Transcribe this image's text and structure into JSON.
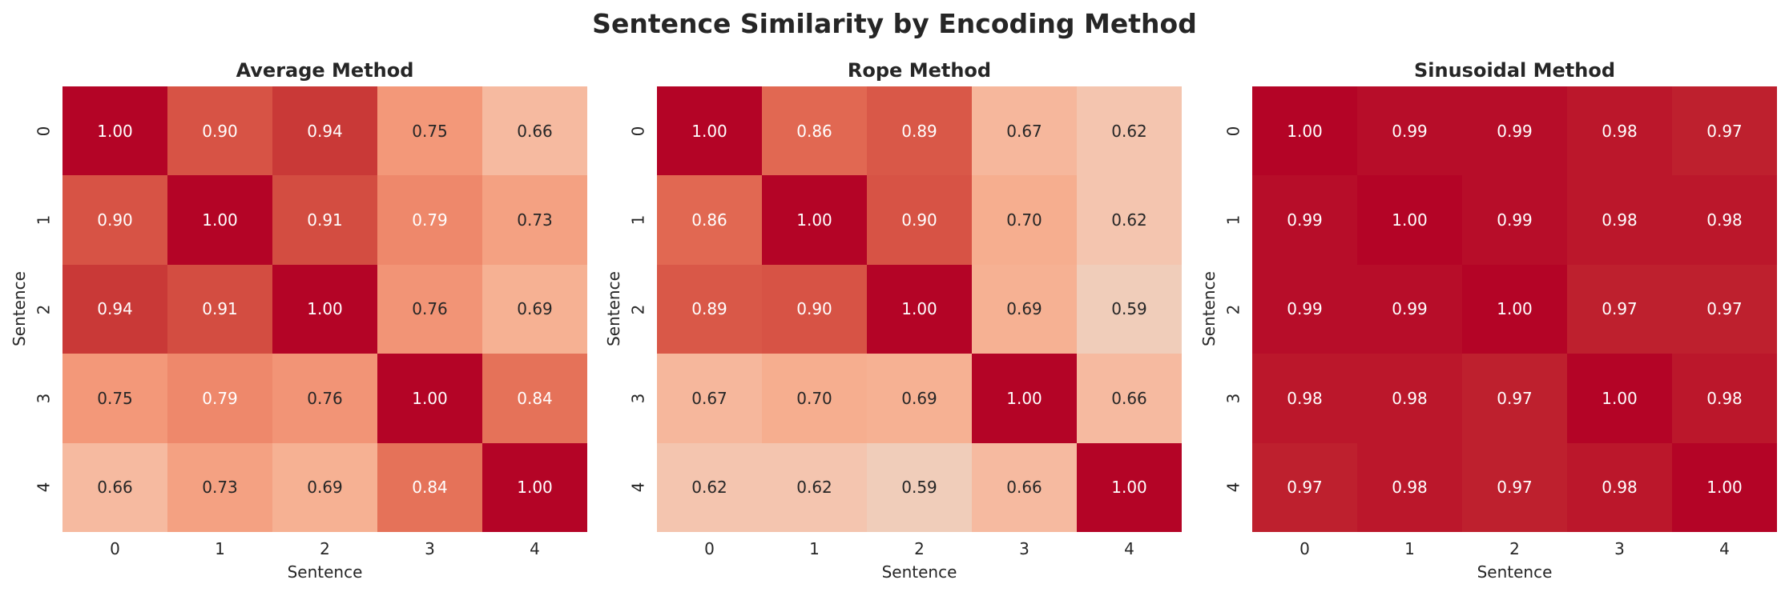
{
  "title": "Sentence Similarity by Encoding Method",
  "panels": [
    {
      "title": "Average Method",
      "xlabel": "Sentence",
      "ylabel": "Sentence",
      "xticks": [
        "0",
        "1",
        "2",
        "3",
        "4"
      ],
      "yticks": [
        "0",
        "1",
        "2",
        "3",
        "4"
      ]
    },
    {
      "title": "Rope Method",
      "xlabel": "Sentence",
      "ylabel": "Sentence",
      "xticks": [
        "0",
        "1",
        "2",
        "3",
        "4"
      ],
      "yticks": [
        "0",
        "1",
        "2",
        "3",
        "4"
      ]
    },
    {
      "title": "Sinusoidal Method",
      "xlabel": "Sentence",
      "ylabel": "Sentence",
      "xticks": [
        "0",
        "1",
        "2",
        "3",
        "4"
      ],
      "yticks": [
        "0",
        "1",
        "2",
        "3",
        "4"
      ]
    }
  ],
  "chart_data": [
    {
      "type": "heatmap",
      "title": "Average Method",
      "xlabel": "Sentence",
      "ylabel": "Sentence",
      "x": [
        0,
        1,
        2,
        3,
        4
      ],
      "y": [
        0,
        1,
        2,
        3,
        4
      ],
      "colormap": "coolwarm",
      "vmin": 0,
      "vmax": 1,
      "values": [
        [
          1.0,
          0.9,
          0.94,
          0.75,
          0.66
        ],
        [
          0.9,
          1.0,
          0.91,
          0.79,
          0.73
        ],
        [
          0.94,
          0.91,
          1.0,
          0.76,
          0.69
        ],
        [
          0.75,
          0.79,
          0.76,
          1.0,
          0.84
        ],
        [
          0.66,
          0.73,
          0.69,
          0.84,
          1.0
        ]
      ]
    },
    {
      "type": "heatmap",
      "title": "Rope Method",
      "xlabel": "Sentence",
      "ylabel": "Sentence",
      "x": [
        0,
        1,
        2,
        3,
        4
      ],
      "y": [
        0,
        1,
        2,
        3,
        4
      ],
      "colormap": "coolwarm",
      "vmin": 0,
      "vmax": 1,
      "values": [
        [
          1.0,
          0.86,
          0.89,
          0.67,
          0.62
        ],
        [
          0.86,
          1.0,
          0.9,
          0.7,
          0.62
        ],
        [
          0.89,
          0.9,
          1.0,
          0.69,
          0.59
        ],
        [
          0.67,
          0.7,
          0.69,
          1.0,
          0.66
        ],
        [
          0.62,
          0.62,
          0.59,
          0.66,
          1.0
        ]
      ]
    },
    {
      "type": "heatmap",
      "title": "Sinusoidal Method",
      "xlabel": "Sentence",
      "ylabel": "Sentence",
      "x": [
        0,
        1,
        2,
        3,
        4
      ],
      "y": [
        0,
        1,
        2,
        3,
        4
      ],
      "colormap": "coolwarm",
      "vmin": 0,
      "vmax": 1,
      "values": [
        [
          1.0,
          0.99,
          0.99,
          0.98,
          0.97
        ],
        [
          0.99,
          1.0,
          0.99,
          0.98,
          0.98
        ],
        [
          0.99,
          0.99,
          1.0,
          0.97,
          0.97
        ],
        [
          0.98,
          0.98,
          0.97,
          1.0,
          0.98
        ],
        [
          0.97,
          0.98,
          0.97,
          0.98,
          1.0
        ]
      ]
    }
  ],
  "colors": {
    "text_dark": "#262626",
    "text_light": "#ffffff",
    "max": "#b40426"
  }
}
